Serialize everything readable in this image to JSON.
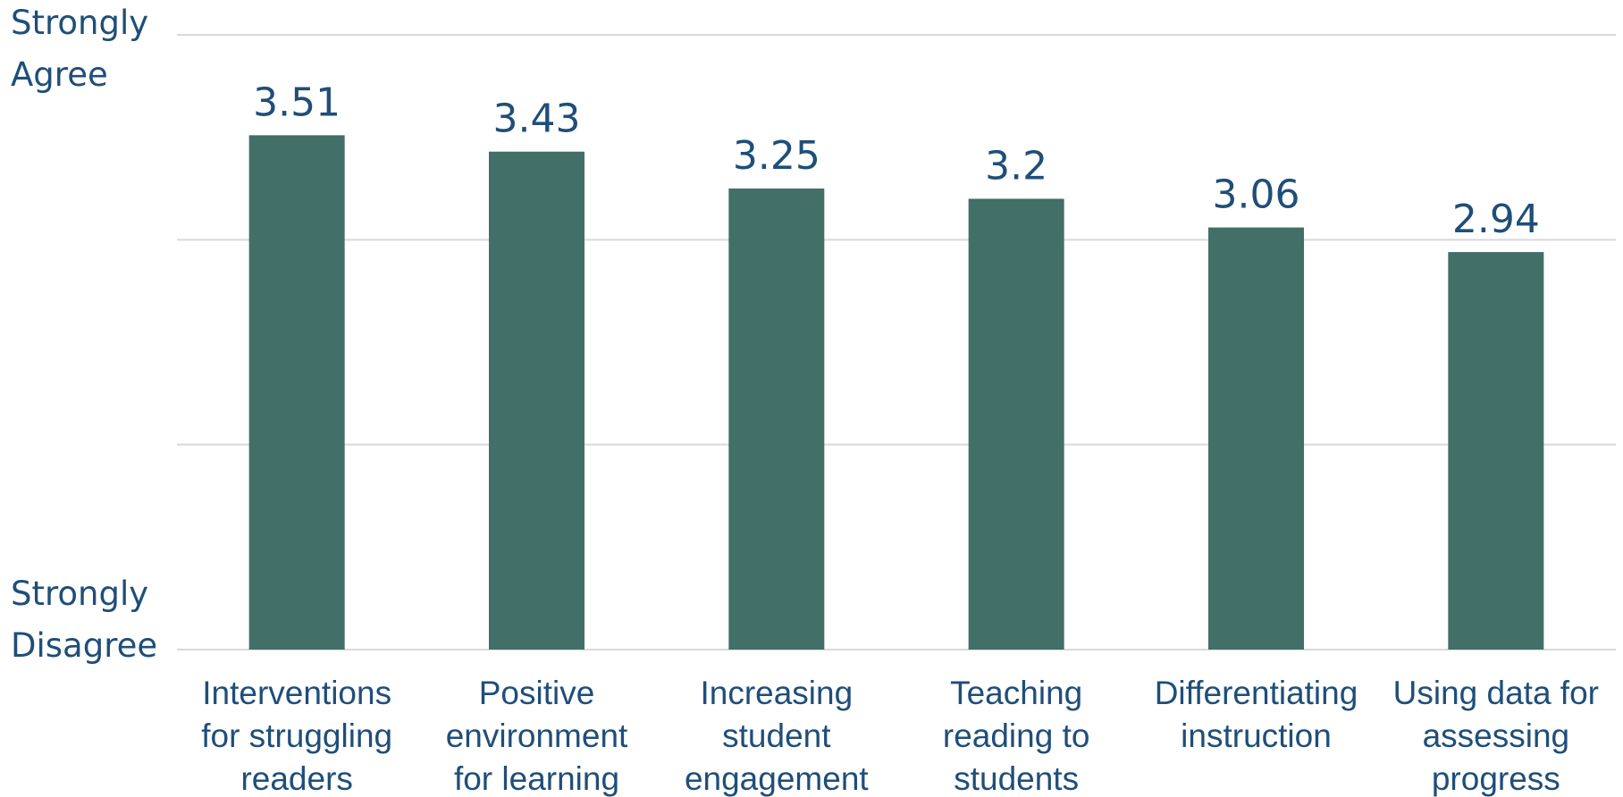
{
  "chart_data": {
    "type": "bar",
    "categories": [
      [
        "Interventions",
        "for struggling",
        "readers"
      ],
      [
        "Positive",
        "environment",
        "for learning"
      ],
      [
        "Increasing",
        "student",
        "engagement"
      ],
      [
        "Teaching",
        "reading to",
        "students"
      ],
      [
        "Differentiating",
        "instruction"
      ],
      [
        "Using data for",
        "assessing",
        "progress"
      ]
    ],
    "values": [
      3.51,
      3.43,
      3.25,
      3.2,
      3.06,
      2.94
    ],
    "data_labels": [
      "3.51",
      "3.43",
      "3.25",
      "3.2",
      "3.06",
      "2.94"
    ],
    "ylim": [
      1,
      4
    ],
    "y_tick_step": 1,
    "y_labels": {
      "top": [
        "Strongly",
        "Agree"
      ],
      "bottom": [
        "Strongly",
        "Disagree"
      ]
    },
    "bar_color": "#426f68",
    "text_color": "#1f4e79",
    "grid": true,
    "legend": "none"
  }
}
